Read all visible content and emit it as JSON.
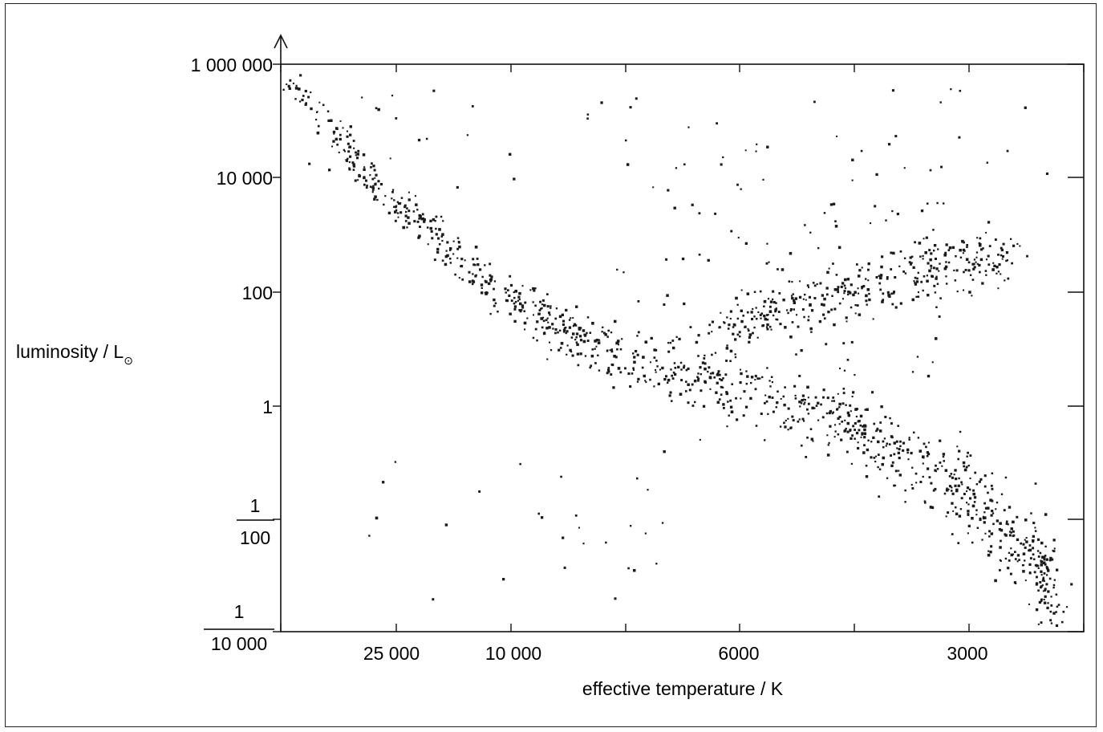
{
  "chart_data": {
    "type": "scatter",
    "title": "",
    "xlabel": "effective temperature / K",
    "ylabel": "luminosity / L",
    "ylabel_subscript": "⊙",
    "x_ticks": [
      {
        "value": 25000,
        "label": "25 000"
      },
      {
        "value": 10000,
        "label": "10 000"
      },
      {
        "value": 6000,
        "label": "6000"
      },
      {
        "value": 3000,
        "label": "3000"
      }
    ],
    "y_ticks": [
      {
        "value": 1000000,
        "label": "1 000 000",
        "fraction": false
      },
      {
        "value": 10000,
        "label": "10 000",
        "fraction": false
      },
      {
        "value": 100,
        "label": "100",
        "fraction": false
      },
      {
        "value": 1,
        "label": "1",
        "fraction": false
      },
      {
        "value": 0.01,
        "numerator": "1",
        "denominator": "100",
        "fraction": true
      },
      {
        "value": 0.0001,
        "numerator": "1",
        "denominator": "10 000",
        "fraction": true
      }
    ],
    "y_scale": "log",
    "x_scale": "decreasing",
    "ylim": [
      0.0001,
      1000000
    ],
    "grid": false,
    "legend": "none",
    "point_color": "#1a1a1a",
    "series": [
      {
        "groups": [
          {
            "region": "main sequence",
            "points": "continuous band from approx (40000 K, 1000000) to (2200 K, 0.0001)"
          },
          {
            "region": "giant branch",
            "points": "band from approx (5500 K, 100) to (2800 K, 300)"
          },
          {
            "region": "supergiants",
            "points": "scattered near 10 000 – 1 000 000"
          },
          {
            "region": "white dwarfs",
            "points": "scattered near 0.001 – 0.1 at high temperature"
          }
        ]
      }
    ]
  }
}
